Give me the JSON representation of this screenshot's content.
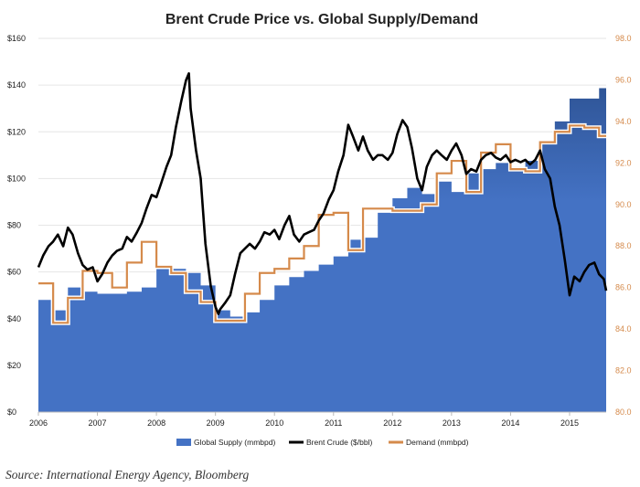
{
  "chart_data": {
    "type": "area",
    "title": "Brent Crude Price vs. Global Supply/Demand",
    "source": "Source: International Energy Agency, Bloomberg",
    "x_range": [
      2006,
      2015.62
    ],
    "x_ticks": [
      "2006",
      "2007",
      "2008",
      "2009",
      "2010",
      "2011",
      "2012",
      "2013",
      "2014",
      "2015"
    ],
    "y_left": {
      "range": [
        0,
        160
      ],
      "ticks": [
        "$0",
        "$20",
        "$40",
        "$60",
        "$80",
        "$100",
        "$120",
        "$140",
        "$160"
      ]
    },
    "y_right": {
      "range": [
        80,
        98
      ],
      "ticks": [
        "80.0",
        "82.0",
        "84.0",
        "86.0",
        "88.0",
        "90.0",
        "92.0",
        "94.0",
        "96.0",
        "98.0"
      ]
    },
    "colors": {
      "supply": "#4472c4",
      "supply_dark": "#2f5597",
      "brent": "#000000",
      "demand": "#d58a4b",
      "right_axis": "#d58a4b"
    },
    "legend": [
      "Global Supply (mmbpd)",
      "Brent Crude ($/bbl)",
      "Demand (mmbpd)"
    ],
    "series": [
      {
        "name": "Global Supply (mmbpd)",
        "kind": "step-area",
        "axis": "right",
        "x": [
          2006,
          2006.25,
          2006.5,
          2006.75,
          2007,
          2007.25,
          2007.5,
          2007.75,
          2008,
          2008.25,
          2008.5,
          2008.75,
          2009,
          2009.25,
          2009.5,
          2009.75,
          2010,
          2010.25,
          2010.5,
          2010.75,
          2011,
          2011.25,
          2011.5,
          2011.75,
          2012,
          2012.25,
          2012.5,
          2012.75,
          2013,
          2013.25,
          2013.5,
          2013.75,
          2014,
          2014.25,
          2014.5,
          2014.75,
          2015,
          2015.25,
          2015.5,
          2015.62
        ],
        "values": [
          85.4,
          84.9,
          86.0,
          85.8,
          85.7,
          85.7,
          85.8,
          86.0,
          87.0,
          86.9,
          86.7,
          86.1,
          84.9,
          84.6,
          84.8,
          85.4,
          86.1,
          86.5,
          86.8,
          87.1,
          87.5,
          88.3,
          88.4,
          89.6,
          90.3,
          90.8,
          90.5,
          91.1,
          90.6,
          91.5,
          91.7,
          92.0,
          91.8,
          92.1,
          92.9,
          94.0,
          95.1,
          95.1,
          95.6,
          95.3
        ]
      },
      {
        "name": "Demand (mmbpd)",
        "kind": "step-line",
        "axis": "right",
        "x": [
          2006,
          2006.25,
          2006.5,
          2006.75,
          2007,
          2007.25,
          2007.5,
          2007.75,
          2008,
          2008.25,
          2008.5,
          2008.75,
          2009,
          2009.25,
          2009.5,
          2009.75,
          2010,
          2010.25,
          2010.5,
          2010.75,
          2011,
          2011.25,
          2011.5,
          2011.75,
          2012,
          2012.25,
          2012.5,
          2012.75,
          2013,
          2013.25,
          2013.5,
          2013.75,
          2014,
          2014.25,
          2014.5,
          2014.75,
          2015,
          2015.25,
          2015.5,
          2015.62
        ],
        "values": [
          86.2,
          84.3,
          85.5,
          86.8,
          86.7,
          86.0,
          87.2,
          88.2,
          87.0,
          86.7,
          85.8,
          85.3,
          84.4,
          84.4,
          85.7,
          86.7,
          86.9,
          87.4,
          88.0,
          89.5,
          89.6,
          87.8,
          89.8,
          89.8,
          89.7,
          89.7,
          90.0,
          91.5,
          92.1,
          90.6,
          92.5,
          92.9,
          91.7,
          91.6,
          93.0,
          93.5,
          93.8,
          93.7,
          93.3,
          94.5
        ]
      },
      {
        "name": "Brent Crude ($/bbl)",
        "kind": "line",
        "axis": "left",
        "x": [
          2006,
          2006.08,
          2006.17,
          2006.25,
          2006.33,
          2006.42,
          2006.5,
          2006.58,
          2006.67,
          2006.75,
          2006.83,
          2006.92,
          2007,
          2007.08,
          2007.17,
          2007.25,
          2007.33,
          2007.42,
          2007.5,
          2007.58,
          2007.67,
          2007.75,
          2007.83,
          2007.92,
          2008,
          2008.08,
          2008.17,
          2008.25,
          2008.33,
          2008.42,
          2008.5,
          2008.55,
          2008.58,
          2008.67,
          2008.75,
          2008.83,
          2008.92,
          2009,
          2009.05,
          2009.08,
          2009.17,
          2009.25,
          2009.33,
          2009.42,
          2009.5,
          2009.58,
          2009.67,
          2009.75,
          2009.83,
          2009.92,
          2010,
          2010.08,
          2010.17,
          2010.25,
          2010.33,
          2010.42,
          2010.5,
          2010.58,
          2010.67,
          2010.75,
          2010.83,
          2010.92,
          2011,
          2011.08,
          2011.17,
          2011.25,
          2011.33,
          2011.42,
          2011.5,
          2011.58,
          2011.67,
          2011.75,
          2011.83,
          2011.92,
          2012,
          2012.08,
          2012.17,
          2012.25,
          2012.33,
          2012.42,
          2012.5,
          2012.58,
          2012.67,
          2012.75,
          2012.83,
          2012.92,
          2013,
          2013.08,
          2013.17,
          2013.25,
          2013.33,
          2013.42,
          2013.5,
          2013.58,
          2013.67,
          2013.75,
          2013.83,
          2013.92,
          2014,
          2014.08,
          2014.17,
          2014.25,
          2014.33,
          2014.42,
          2014.5,
          2014.58,
          2014.67,
          2014.75,
          2014.83,
          2014.92,
          2015,
          2015.08,
          2015.17,
          2015.25,
          2015.33,
          2015.42,
          2015.5,
          2015.58,
          2015.62
        ],
        "values": [
          62,
          67,
          71,
          73,
          76,
          71,
          79,
          76,
          68,
          63,
          61,
          62,
          56,
          59,
          64,
          67,
          69,
          70,
          75,
          73,
          77,
          81,
          87,
          93,
          92,
          98,
          105,
          110,
          122,
          133,
          142,
          145,
          130,
          112,
          100,
          72,
          54,
          45,
          42,
          44,
          47,
          50,
          59,
          68,
          70,
          72,
          70,
          73,
          77,
          76,
          78,
          74,
          80,
          84,
          76,
          73,
          76,
          77,
          78,
          82,
          85,
          91,
          95,
          103,
          110,
          123,
          118,
          112,
          118,
          112,
          108,
          110,
          110,
          108,
          111,
          119,
          125,
          122,
          113,
          100,
          95,
          105,
          110,
          112,
          110,
          108,
          112,
          115,
          110,
          102,
          104,
          103,
          108,
          110,
          111,
          109,
          108,
          110,
          107,
          108,
          107,
          108,
          106,
          108,
          112,
          104,
          100,
          88,
          80,
          65,
          50,
          58,
          56,
          60,
          63,
          64,
          59,
          57,
          52
        ]
      }
    ]
  }
}
